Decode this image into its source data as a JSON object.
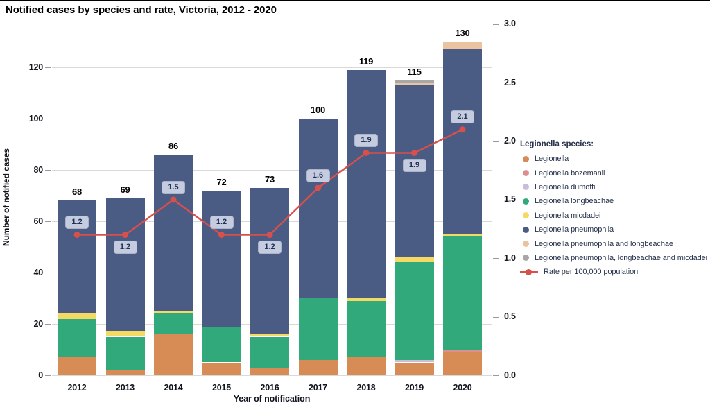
{
  "title": "Notified cases by species and rate, Victoria, 2012 - 2020",
  "axes": {
    "x_title": "Year of notification",
    "y_left_title": "Number of notified cases",
    "y_left_ticks": [
      0,
      20,
      40,
      60,
      80,
      100,
      120
    ],
    "y_right_ticks": [
      "0.0",
      "0.5",
      "1.0",
      "1.5",
      "2.0",
      "2.5",
      "3.0"
    ]
  },
  "legend": {
    "title": "Legionella species:",
    "rate_label": "Rate per 100,000 population"
  },
  "colors": {
    "rate_line": "#D8504C",
    "rate_label_bg": "#C5CCDF",
    "rate_label_text": "#1E3255",
    "gridline": "#D9D9D9",
    "legend_text": "#26324B"
  },
  "chart_data": {
    "type": "bar",
    "subtype": "stacked-bars-with-rate-line",
    "title": "Notified cases by species and rate, Victoria, 2012 - 2020",
    "xlabel": "Year of notification",
    "ylabel": "Number of notified cases",
    "ylabel_right": "Rate per 100,000 population",
    "ylim_left": [
      0,
      130
    ],
    "ylim_right": [
      0.0,
      3.0
    ],
    "grid": "horizontal",
    "legend_position": "right",
    "categories": [
      "2012",
      "2013",
      "2014",
      "2015",
      "2016",
      "2017",
      "2018",
      "2019",
      "2020"
    ],
    "totals": [
      68,
      69,
      86,
      72,
      73,
      100,
      119,
      115,
      130
    ],
    "series": [
      {
        "name": "Legionella",
        "color": "#D78C55",
        "values": [
          7,
          2,
          16,
          5,
          3,
          6,
          7,
          5,
          9
        ]
      },
      {
        "name": "Legionella bozemanii",
        "color": "#DB9090",
        "values": [
          0,
          0,
          0,
          0,
          0,
          0,
          0,
          0,
          1
        ]
      },
      {
        "name": "Legionella dumoffii",
        "color": "#CBBDD8",
        "values": [
          0,
          0,
          0,
          0,
          0,
          0,
          0,
          1,
          0
        ]
      },
      {
        "name": "Legionella longbeachae",
        "color": "#31A97A",
        "values": [
          15,
          13,
          8,
          14,
          12,
          24,
          22,
          38,
          44
        ]
      },
      {
        "name": "Legionella micdadei",
        "color": "#F5D965",
        "values": [
          2,
          2,
          1,
          0,
          1,
          0,
          1,
          2,
          1
        ]
      },
      {
        "name": "Legionella pneumophila",
        "color": "#4A5B84",
        "values": [
          44,
          52,
          61,
          53,
          57,
          70,
          89,
          67,
          72
        ]
      },
      {
        "name": "Legionella pneumophila and longbeachae",
        "color": "#EAC3A1",
        "values": [
          0,
          0,
          0,
          0,
          0,
          0,
          0,
          1,
          3
        ]
      },
      {
        "name": "Legionella pneumophila, longbeachae and micdadei",
        "color": "#A7A7A7",
        "values": [
          0,
          0,
          0,
          0,
          0,
          0,
          0,
          1,
          0
        ]
      }
    ],
    "line": {
      "name": "Rate per 100,000 population",
      "color": "#D8504C",
      "values": [
        1.2,
        1.2,
        1.5,
        1.2,
        1.2,
        1.6,
        1.9,
        1.9,
        2.1
      ],
      "labels": [
        "1.2",
        "1.2",
        "1.5",
        "1.2",
        "1.2",
        "1.6",
        "1.9",
        "1.9",
        "2.1"
      ],
      "label_positions": [
        "above",
        "below",
        "above",
        "above",
        "below",
        "above",
        "above",
        "below",
        "above"
      ]
    }
  }
}
